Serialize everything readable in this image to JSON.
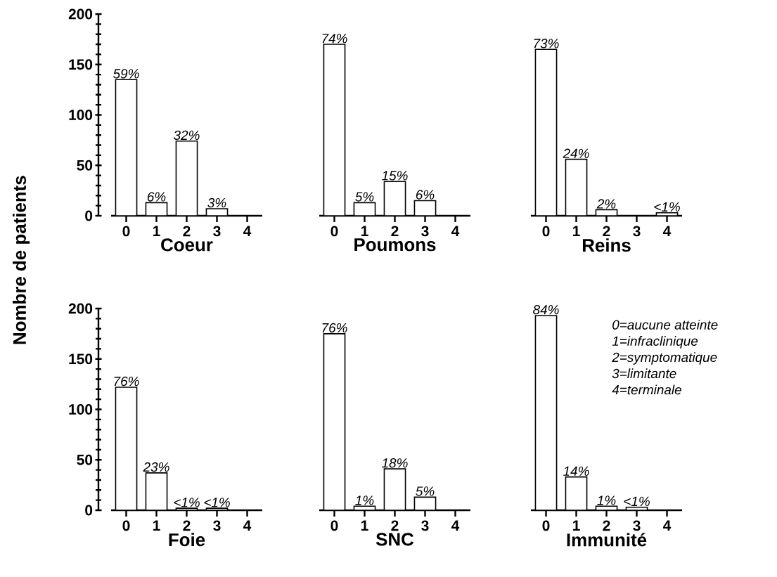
{
  "chart_data": [
    {
      "type": "bar",
      "xlabel": "Coeur",
      "ylabel": "Nombre de patients",
      "categories": [
        "0",
        "1",
        "2",
        "3",
        "4"
      ],
      "values": [
        135,
        13,
        74,
        7,
        null
      ],
      "color": "#ffffff",
      "ylim": [
        0,
        200
      ],
      "yticks": [
        0,
        50,
        100,
        150,
        200
      ],
      "annotations": [
        {
          "text": "59%",
          "x": "0",
          "y": 135
        },
        {
          "text": "6%",
          "x": "1",
          "y": 13
        },
        {
          "text": "32%",
          "x": "2",
          "y": 74
        },
        {
          "text": "3%",
          "x": "3",
          "y": 7
        }
      ]
    },
    {
      "type": "bar",
      "xlabel": "Poumons",
      "categories": [
        "0",
        "1",
        "2",
        "3",
        "4"
      ],
      "values": [
        170,
        13,
        34,
        15,
        null
      ],
      "color": "#ffffff",
      "ylim": [
        0,
        200
      ],
      "yticks": [
        0,
        50,
        100,
        150,
        200
      ],
      "tick_labels": "x",
      "annotations": [
        {
          "text": "74%",
          "x": "0",
          "y": 170
        },
        {
          "text": "5%",
          "x": "1",
          "y": 13
        },
        {
          "text": "15%",
          "x": "2",
          "y": 34
        },
        {
          "text": "6%",
          "x": "3",
          "y": 15
        }
      ]
    },
    {
      "type": "bar",
      "xlabel": "Reins",
      "categories": [
        "0",
        "1",
        "2",
        "3",
        "4"
      ],
      "values": [
        165,
        56,
        6,
        null,
        3
      ],
      "color": "#ffffff",
      "ylim": [
        0,
        200
      ],
      "yticks": [
        0,
        50,
        100,
        150,
        200
      ],
      "tick_labels": "x",
      "annotations": [
        {
          "text": "73%",
          "x": "0",
          "y": 165
        },
        {
          "text": "24%",
          "x": "1",
          "y": 56
        },
        {
          "text": "2%",
          "x": "2",
          "y": 6
        },
        {
          "text": "<1%",
          "x": "4",
          "y": 3
        }
      ]
    },
    {
      "type": "bar",
      "xlabel": "Foie",
      "categories": [
        "0",
        "1",
        "2",
        "3",
        "4"
      ],
      "values": [
        122,
        37,
        2,
        2,
        null
      ],
      "color": "#ffffff",
      "ylim": [
        0,
        200
      ],
      "yticks": [
        0,
        50,
        100,
        150,
        200
      ],
      "annotations": [
        {
          "text": "76%",
          "x": "0",
          "y": 122
        },
        {
          "text": "23%",
          "x": "1",
          "y": 37
        },
        {
          "text": "<1%",
          "x": "2",
          "y": 2
        },
        {
          "text": "<1%",
          "x": "3",
          "y": 2
        }
      ]
    },
    {
      "type": "bar",
      "xlabel": "SNC",
      "categories": [
        "0",
        "1",
        "2",
        "3",
        "4"
      ],
      "values": [
        175,
        4,
        41,
        13,
        null
      ],
      "color": "#ffffff",
      "ylim": [
        0,
        200
      ],
      "yticks": [
        0,
        50,
        100,
        150,
        200
      ],
      "tick_labels": "x",
      "annotations": [
        {
          "text": "76%",
          "x": "0",
          "y": 175
        },
        {
          "text": "1%",
          "x": "1",
          "y": 4
        },
        {
          "text": "18%",
          "x": "2",
          "y": 41
        },
        {
          "text": "5%",
          "x": "3",
          "y": 13
        }
      ]
    },
    {
      "type": "bar",
      "xlabel": "Immunité",
      "categories": [
        "0",
        "1",
        "2",
        "3",
        "4"
      ],
      "values": [
        193,
        33,
        4,
        3,
        null
      ],
      "color": "#ffffff",
      "ylim": [
        0,
        200
      ],
      "yticks": [
        0,
        50,
        100,
        150,
        200
      ],
      "tick_labels": "x",
      "annotations": [
        {
          "text": "84%",
          "x": "0",
          "y": 193
        },
        {
          "text": "14%",
          "x": "1",
          "y": 33
        },
        {
          "text": "1%",
          "x": "2",
          "y": 4
        },
        {
          "text": "<1%",
          "x": "3",
          "y": 3
        },
        "0=aucune atteinte",
        "1=infraclinique",
        "2=symptomatique",
        "3=limitante",
        "4=terminale"
      ]
    }
  ]
}
